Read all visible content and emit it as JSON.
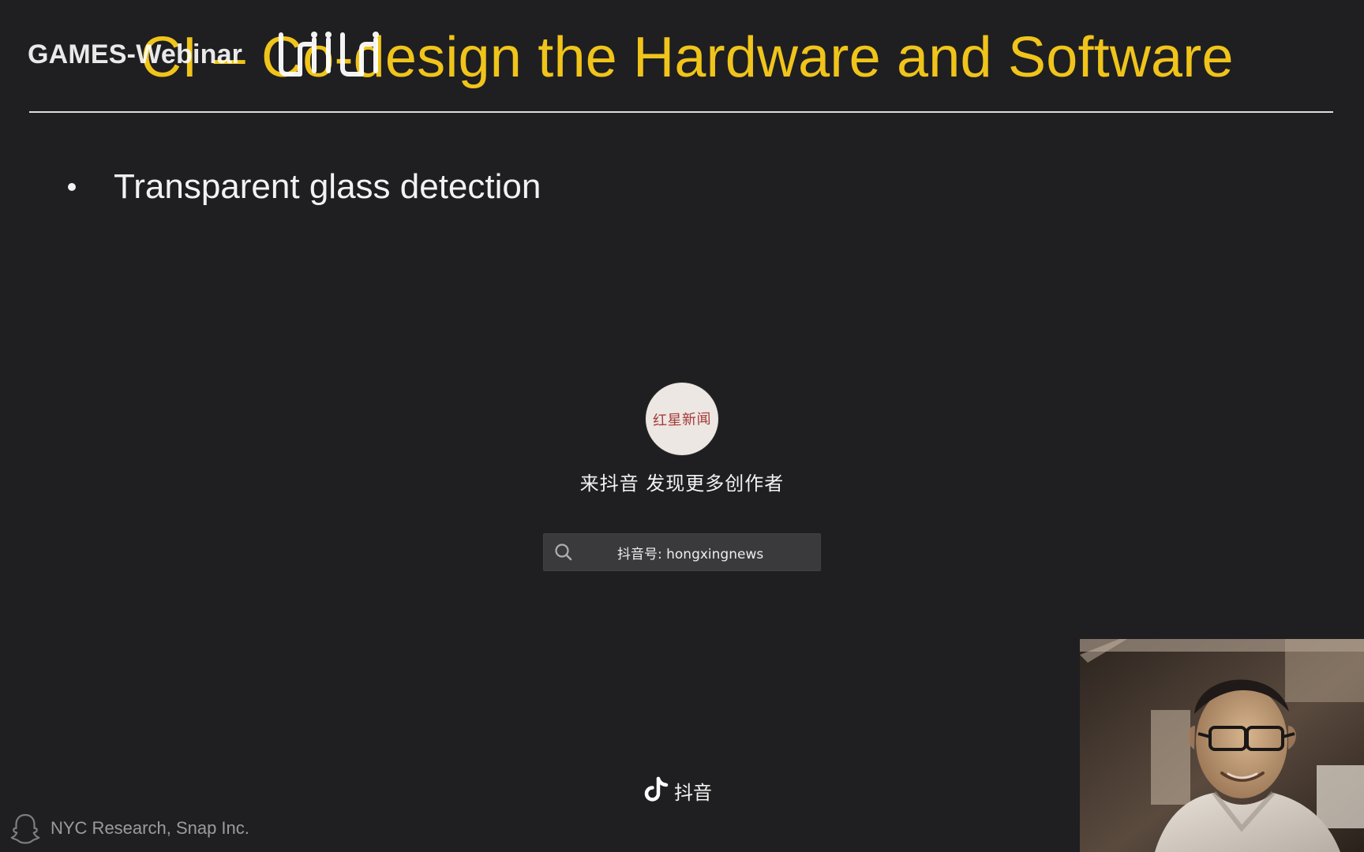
{
  "overlay": {
    "watermark": "GAMES-Webinar",
    "bili_logo_icon": "bilibili-logo"
  },
  "slide": {
    "title": "CI – Co-design the Hardware and Software",
    "bullets": [
      {
        "text": "Transparent glass detection"
      }
    ],
    "footer": {
      "icon": "snapchat-ghost-icon",
      "text": "NYC Research, Snap Inc."
    }
  },
  "douyin": {
    "avatar_text": "红星新闻",
    "tagline": "来抖音 发现更多创作者",
    "search": {
      "icon": "search-icon",
      "text": "抖音号: hongxingnews"
    },
    "brand": {
      "icon": "douyin-note-icon",
      "text": "抖音"
    }
  },
  "webcam": {
    "label": "speaker-webcam-feed"
  },
  "colors": {
    "background": "#1f1f21",
    "title": "#f0c41a",
    "text": "#f2f2f2",
    "rule": "#e9e9e9"
  }
}
